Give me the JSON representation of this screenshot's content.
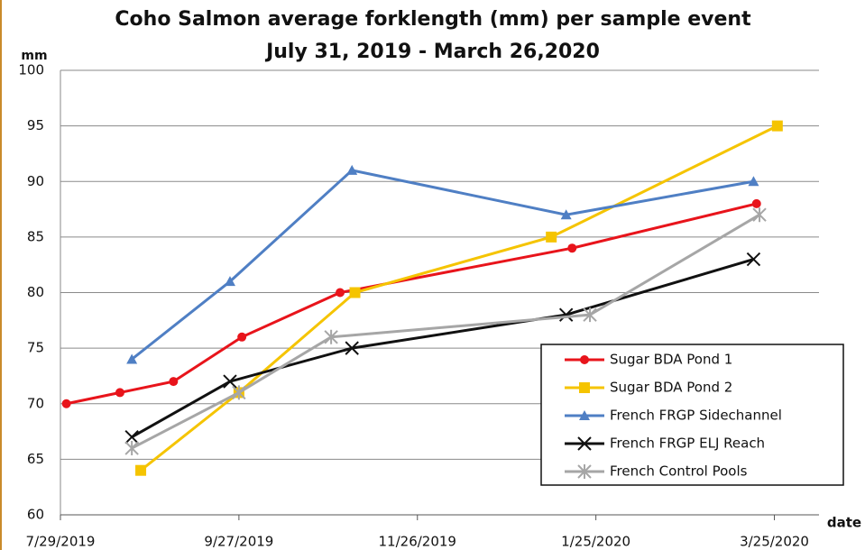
{
  "chart_data": {
    "type": "line",
    "title": "Coho Salmon average forklength (mm) per sample event",
    "subtitle": "July 31, 2019 - March 26,2020",
    "ylabel": "mm",
    "xlabel": "date",
    "xlim": [
      "2019-07-29",
      "2020-04-09"
    ],
    "xticks": [
      {
        "value": "2019-07-29",
        "label": "7/29/2019"
      },
      {
        "value": "2019-09-27",
        "label": "9/27/2019"
      },
      {
        "value": "2019-11-26",
        "label": "11/26/2019"
      },
      {
        "value": "2020-01-25",
        "label": "1/25/2020"
      },
      {
        "value": "2020-03-25",
        "label": "3/25/2020"
      }
    ],
    "ylim": [
      60,
      100
    ],
    "yticks": [
      60,
      65,
      70,
      75,
      80,
      85,
      90,
      95,
      100
    ],
    "grid": true,
    "legend": "lower right",
    "series": [
      {
        "name": "Sugar BDA Pond 1",
        "color": "#e8141b",
        "marker": "circle",
        "x": [
          "2019-07-31",
          "2019-08-18",
          "2019-09-05",
          "2019-09-28",
          "2019-10-31",
          "2020-01-17",
          "2020-03-19"
        ],
        "values": [
          70,
          71,
          72,
          76,
          80,
          84,
          88
        ]
      },
      {
        "name": "Sugar BDA Pond 2",
        "color": "#f5c400",
        "marker": "square",
        "x": [
          "2019-08-25",
          "2019-09-27",
          "2019-11-05",
          "2020-01-10",
          "2020-03-26"
        ],
        "values": [
          64,
          71,
          80,
          85,
          95
        ]
      },
      {
        "name": "French FRGP Sidechannel",
        "color": "#4f7fc4",
        "marker": "triangle",
        "x": [
          "2019-08-22",
          "2019-09-24",
          "2019-11-04",
          "2020-01-15",
          "2020-03-18"
        ],
        "values": [
          74,
          81,
          91,
          87,
          90
        ]
      },
      {
        "name": "French FRGP ELJ Reach",
        "color": "#111111",
        "marker": "x",
        "x": [
          "2019-08-22",
          "2019-09-24",
          "2019-11-04",
          "2020-01-15",
          "2020-03-18"
        ],
        "values": [
          67,
          72,
          75,
          78,
          83
        ]
      },
      {
        "name": "French Control Pools",
        "color": "#a6a6a6",
        "marker": "star",
        "x": [
          "2019-08-22",
          "2019-09-27",
          "2019-10-28",
          "2020-01-23",
          "2020-03-20"
        ],
        "values": [
          66,
          71,
          76,
          78,
          87
        ]
      }
    ]
  }
}
